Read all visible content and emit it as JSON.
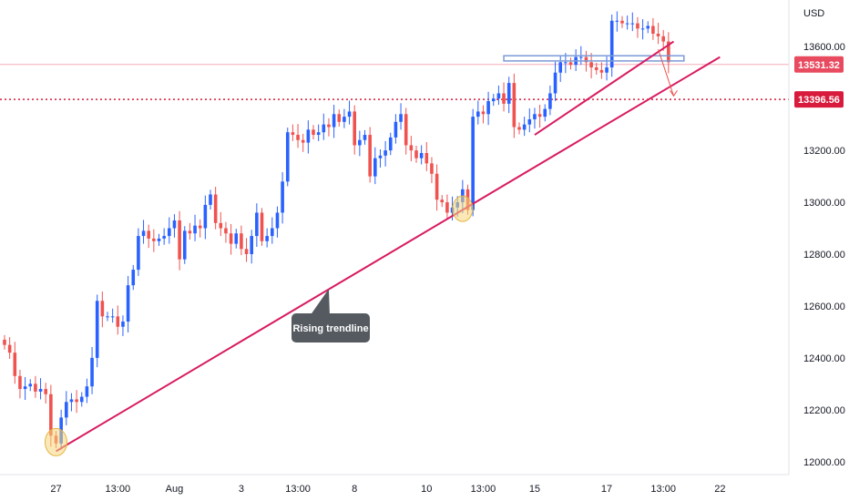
{
  "chart_data": {
    "type": "candlestick",
    "currency_label": "USD",
    "y_range": [
      11950,
      13780
    ],
    "y_ticks": [
      {
        "value": 12000,
        "label": "12000.00"
      },
      {
        "value": 12200,
        "label": "12200.00"
      },
      {
        "value": 12400,
        "label": "12400.00"
      },
      {
        "value": 12600,
        "label": "12600.00"
      },
      {
        "value": 12800,
        "label": "12800.00"
      },
      {
        "value": 13000,
        "label": "13000.00"
      },
      {
        "value": 13200,
        "label": "13200.00"
      },
      {
        "value": 13600,
        "label": "13600.00"
      }
    ],
    "x_ticks": [
      {
        "label": "27",
        "bar": 10
      },
      {
        "label": "13:00",
        "bar": 22
      },
      {
        "label": "Aug",
        "bar": 33
      },
      {
        "label": "3",
        "bar": 46
      },
      {
        "label": "13:00",
        "bar": 57
      },
      {
        "label": "8",
        "bar": 68
      },
      {
        "label": "10",
        "bar": 82
      },
      {
        "label": "13:00",
        "bar": 93
      },
      {
        "label": "15",
        "bar": 103
      },
      {
        "label": "17",
        "bar": 117
      },
      {
        "label": "13:00",
        "bar": 128
      },
      {
        "label": "22",
        "bar": 139
      }
    ],
    "price_tags": [
      {
        "value": 13531.32,
        "label": "13531.32",
        "color": "#e84a5f",
        "style": "solid"
      },
      {
        "value": 13396.56,
        "label": "13396.56",
        "color": "#d81b3c",
        "style": "dotted"
      }
    ],
    "colors": {
      "up": "#2962ff",
      "down": "#ef5350",
      "trendline": "#d81b60",
      "support": "#7b9bd6",
      "highlight": "#f6d77a"
    },
    "closes": [
      12450,
      12420,
      12330,
      12280,
      12290,
      12300,
      12270,
      12280,
      12260,
      12100,
      12070,
      12170,
      12230,
      12240,
      12230,
      12250,
      12290,
      12400,
      12620,
      12560,
      12560,
      12560,
      12520,
      12540,
      12680,
      12740,
      12870,
      12890,
      12860,
      12850,
      12860,
      12870,
      12900,
      12930,
      12780,
      12890,
      12880,
      12910,
      12900,
      12990,
      13030,
      12920,
      12900,
      12880,
      12840,
      12880,
      12820,
      12800,
      12870,
      12960,
      12850,
      12870,
      12900,
      12960,
      13080,
      13270,
      13260,
      13240,
      13230,
      13280,
      13260,
      13270,
      13300,
      13290,
      13340,
      13310,
      13330,
      13350,
      13220,
      13240,
      13260,
      13100,
      13170,
      13180,
      13200,
      13250,
      13310,
      13340,
      13220,
      13200,
      13170,
      13190,
      13150,
      13110,
      13010,
      13000,
      12960,
      12980,
      13000,
      13050,
      12970,
      13330,
      13350,
      13340,
      13390,
      13400,
      13420,
      13380,
      13460,
      13290,
      13280,
      13300,
      13320,
      13340,
      13330,
      13360,
      13420,
      13500,
      13540,
      13540,
      13530,
      13560,
      13560,
      13540,
      13520,
      13510,
      13500,
      13520,
      13700,
      13700,
      13690,
      13690,
      13690,
      13670,
      13670,
      13680,
      13650,
      13640,
      13620,
      13540
    ],
    "trendlines": [
      {
        "name": "rising-trendline",
        "from": {
          "bar": 10,
          "price": 12040
        },
        "to": {
          "bar": 139,
          "price": 13560
        }
      },
      {
        "name": "short-trendline",
        "from": {
          "bar": 103,
          "price": 13260
        },
        "to": {
          "bar": 130,
          "price": 13620
        }
      }
    ],
    "support_zone": {
      "from_bar": 97,
      "to_bar": 132,
      "top": 13565,
      "bottom": 13545
    },
    "callout": {
      "text": "Rising trendline"
    }
  }
}
